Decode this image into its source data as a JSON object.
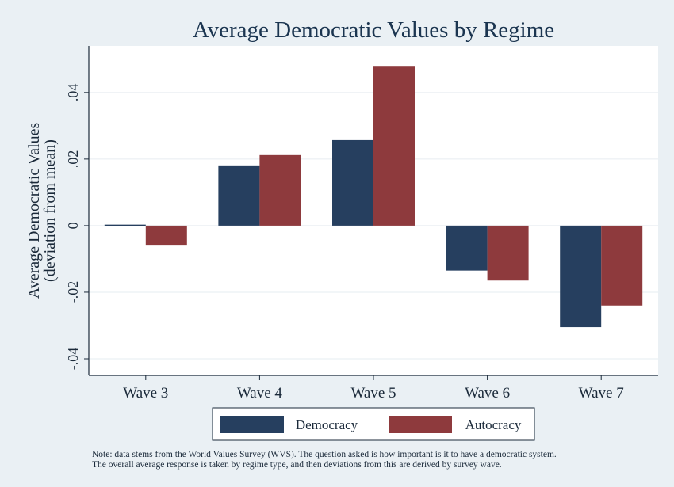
{
  "chart_data": {
    "type": "bar",
    "title": "Average Democratic Values by Regime",
    "ylabel_line1": "Average Democratic Values",
    "ylabel_line2": "(deviation from mean)",
    "xlabel": "",
    "categories": [
      "Wave 3",
      "Wave 4",
      "Wave 5",
      "Wave 6",
      "Wave 7"
    ],
    "series": [
      {
        "name": "Democracy",
        "color": "#263f5f",
        "values": [
          0.0003,
          0.0181,
          0.0257,
          -0.0135,
          -0.0305
        ]
      },
      {
        "name": "Autocracy",
        "color": "#8e3a3d",
        "values": [
          -0.006,
          0.0212,
          0.048,
          -0.0165,
          -0.024
        ]
      }
    ],
    "ylim": [
      -0.045,
      0.054
    ],
    "yticks": [
      0.04,
      0.02,
      0,
      -0.02,
      -0.04
    ],
    "ytick_labels": [
      ".04",
      ".02",
      "0",
      "-.02",
      "-.04"
    ],
    "grid": true,
    "legend_position": "bottom"
  },
  "note_line1": "Note: data stems from the World Values Survey (WVS). The question asked is how important is it to have a democratic system.",
  "note_line2": "The overall average response is taken by regime type, and then deviations from this are derived by survey wave."
}
